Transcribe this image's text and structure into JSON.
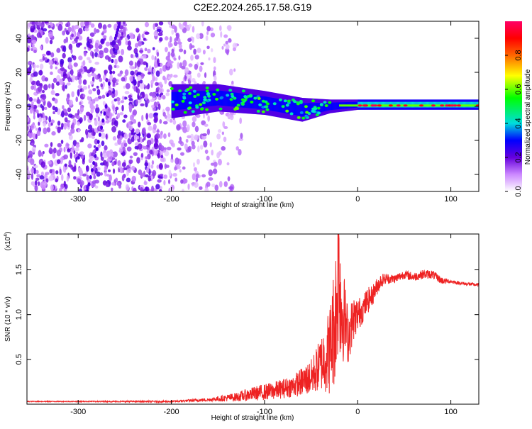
{
  "title": "C2E2.2024.265.17.58.G19",
  "chart_data": [
    {
      "type": "heatmap",
      "name": "spectrogram",
      "xlabel": "Height of straight line (km)",
      "ylabel": "Frequency (Hz)",
      "xlim": [
        -355,
        130
      ],
      "ylim": [
        -50,
        50
      ],
      "xticks": [
        "-300",
        "-200",
        "-100",
        "0",
        "100"
      ],
      "xtick_values": [
        -300,
        -200,
        -100,
        0,
        100
      ],
      "yticks": [
        "40",
        "20",
        "0",
        "-20",
        "-40"
      ],
      "ytick_values": [
        40,
        20,
        0,
        -20,
        -40
      ],
      "colorbar": {
        "label": "Normalized spectral amplitude",
        "range": [
          0,
          1
        ],
        "ticks": [
          "0.0",
          "0.2",
          "0.4",
          "0.6",
          "0.8"
        ],
        "tick_values": [
          0.0,
          0.2,
          0.4,
          0.6,
          0.8
        ],
        "colors": [
          "#ffffff",
          "#cc88ff",
          "#6600dd",
          "#0000ff",
          "#00dddd",
          "#00ff00",
          "#ffff00",
          "#ff6600",
          "#ff0000",
          "#ff0066"
        ]
      },
      "features": {
        "noise_region_x": [
          -355,
          -150
        ],
        "signal_band": [
          {
            "x": -200,
            "f_center": 3,
            "f_halfwidth": 10
          },
          {
            "x": -150,
            "f_center": 5,
            "f_halfwidth": 8
          },
          {
            "x": -100,
            "f_center": 2,
            "f_halfwidth": 7
          },
          {
            "x": -60,
            "f_center": -2,
            "f_halfwidth": 7
          },
          {
            "x": -30,
            "f_center": 0,
            "f_halfwidth": 4
          },
          {
            "x": 0,
            "f_center": 1,
            "f_halfwidth": 3
          },
          {
            "x": 130,
            "f_center": 1,
            "f_halfwidth": 3
          }
        ],
        "peak_band_x": [
          -20,
          130
        ],
        "peak_band_f": 0.5,
        "diagonal_streak": [
          [
            -290,
            -50
          ],
          [
            -280,
            -25
          ],
          [
            -270,
            0
          ],
          [
            -260,
            40
          ],
          [
            -255,
            50
          ]
        ]
      },
      "grid": false
    },
    {
      "type": "line",
      "name": "snr",
      "xlabel": "Height of straight line (km)",
      "ylabel": "SNR (10 * v/v)",
      "multiplier": "(x10",
      "multiplier_exp": "4",
      "xlim": [
        -355,
        130
      ],
      "ylim": [
        0,
        1.9
      ],
      "xticks": [
        "-300",
        "-200",
        "-100",
        "0",
        "100"
      ],
      "xtick_values": [
        -300,
        -200,
        -100,
        0,
        100
      ],
      "yticks": [
        "0.5",
        "1.0",
        "1.5"
      ],
      "ytick_values": [
        0.5,
        1.0,
        1.5
      ],
      "series": [
        {
          "color": "#ee2222",
          "x": [
            -355,
            -300,
            -250,
            -200,
            -160,
            -130,
            -110,
            -90,
            -70,
            -50,
            -40,
            -30,
            -25,
            -22,
            -20,
            -18,
            -15,
            -10,
            -5,
            0,
            5,
            10,
            15,
            20,
            25,
            30,
            40,
            50,
            60,
            70,
            80,
            90,
            100,
            110,
            120,
            130
          ],
          "y": [
            0.03,
            0.03,
            0.03,
            0.03,
            0.05,
            0.08,
            0.12,
            0.15,
            0.2,
            0.3,
            0.45,
            0.6,
            0.9,
            1.2,
            1.6,
            1.1,
            1.0,
            0.75,
            0.95,
            1.0,
            1.05,
            1.15,
            1.2,
            1.3,
            1.38,
            1.4,
            1.4,
            1.45,
            1.42,
            1.45,
            1.45,
            1.38,
            1.37,
            1.35,
            1.34,
            1.33
          ],
          "noise": [
            0.005,
            0.005,
            0.008,
            0.01,
            0.02,
            0.05,
            0.08,
            0.1,
            0.12,
            0.2,
            0.3,
            0.5,
            0.7,
            0.8,
            0.9,
            0.8,
            0.5,
            0.3,
            0.25,
            0.2,
            0.15,
            0.15,
            0.12,
            0.1,
            0.08,
            0.06,
            0.05,
            0.05,
            0.05,
            0.05,
            0.05,
            0.04,
            0.02,
            0.02,
            0.02,
            0.02
          ]
        }
      ],
      "grid": false
    }
  ]
}
